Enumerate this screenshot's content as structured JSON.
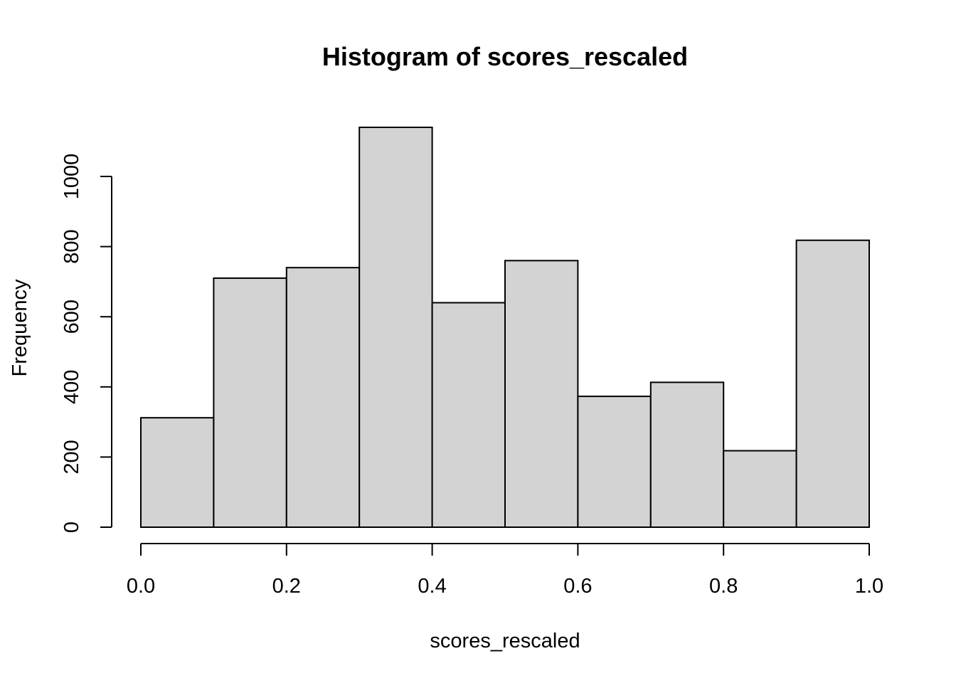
{
  "chart_data": {
    "type": "bar",
    "title": "Histogram of scores_rescaled",
    "xlabel": "scores_rescaled",
    "ylabel": "Frequency",
    "bins": [
      {
        "x0": 0.0,
        "x1": 0.1,
        "count": 312
      },
      {
        "x0": 0.1,
        "x1": 0.2,
        "count": 710
      },
      {
        "x0": 0.2,
        "x1": 0.3,
        "count": 740
      },
      {
        "x0": 0.3,
        "x1": 0.4,
        "count": 1140
      },
      {
        "x0": 0.4,
        "x1": 0.5,
        "count": 640
      },
      {
        "x0": 0.5,
        "x1": 0.6,
        "count": 760
      },
      {
        "x0": 0.6,
        "x1": 0.7,
        "count": 373
      },
      {
        "x0": 0.7,
        "x1": 0.8,
        "count": 413
      },
      {
        "x0": 0.8,
        "x1": 0.9,
        "count": 218
      },
      {
        "x0": 0.9,
        "x1": 1.0,
        "count": 818
      }
    ],
    "x_ticks": [
      "0.0",
      "0.2",
      "0.4",
      "0.6",
      "0.8",
      "1.0"
    ],
    "x_tick_values": [
      0.0,
      0.2,
      0.4,
      0.6,
      0.8,
      1.0
    ],
    "y_ticks": [
      "0",
      "200",
      "400",
      "600",
      "800",
      "1000"
    ],
    "y_tick_values": [
      0,
      200,
      400,
      600,
      800,
      1000
    ],
    "xlim": [
      0.0,
      1.0
    ],
    "ylim": [
      0,
      1140
    ],
    "grid": false,
    "bar_color": "#d3d3d3",
    "edge_color": "#000000"
  }
}
